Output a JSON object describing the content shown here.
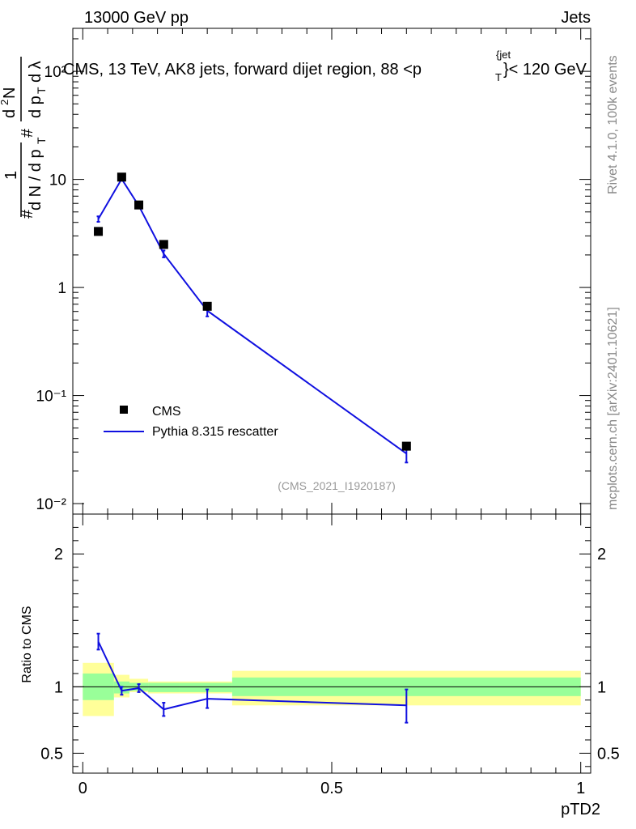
{
  "header": {
    "left": "13000 GeV pp",
    "right": "Jets"
  },
  "side_labels": {
    "rivet": "Rivet 4.1.0,  100k events",
    "mcplots": "mcplots.cern.ch [arXiv:2401.10621]"
  },
  "chart_data": [
    {
      "type": "scatter",
      "panel": "main",
      "title": "CMS, 13 TeV, AK8 jets, forward dijet region, 88 <p",
      "title_sup": "{jet",
      "title_sub": "T",
      "title_tail": "}< 120 GeV",
      "yscale": "log",
      "ylim": [
        0.008,
        250
      ],
      "xlim": [
        -0.02,
        1.02
      ],
      "ylabel": "1 / dN/dpT  d²N / dpT dλ",
      "ytick_labels": [
        "10⁻²",
        "10⁻¹",
        "1",
        "10",
        "10²"
      ],
      "yticks": [
        0.01,
        0.1,
        1,
        10,
        100
      ],
      "watermark": "(CMS_2021_I1920187)",
      "legend": {
        "position": "bottom-left",
        "entries": [
          "CMS",
          "Pythia 8.315 rescatter"
        ]
      },
      "series": [
        {
          "name": "CMS",
          "kind": "markers",
          "color": "#000000",
          "x": [
            0.03125,
            0.078125,
            0.1125,
            0.1625,
            0.25,
            0.65
          ],
          "y": [
            3.3,
            10.5,
            5.8,
            2.5,
            0.67,
            0.034
          ]
        },
        {
          "name": "Pythia 8.315 rescatter",
          "kind": "line",
          "color": "#1010e0",
          "x": [
            0.03125,
            0.078125,
            0.1125,
            0.1625,
            0.25,
            0.65
          ],
          "y": [
            4.3,
            10.1,
            5.7,
            2.05,
            0.61,
            0.029
          ],
          "err_low": [
            0.25,
            0.3,
            0.25,
            0.15,
            0.07,
            0.005
          ],
          "err_high": [
            0.25,
            0.3,
            0.25,
            0.15,
            0.07,
            0.003
          ]
        }
      ]
    },
    {
      "type": "line",
      "panel": "ratio",
      "ylabel": "Ratio to CMS",
      "xlabel": "pTD2",
      "ylim": [
        0.35,
        2.3
      ],
      "xlim": [
        -0.02,
        1.02
      ],
      "yticks": [
        0.5,
        1,
        2
      ],
      "ytick_labels": [
        "0.5",
        "1",
        "2"
      ],
      "xticks": [
        0,
        0.5,
        1
      ],
      "xtick_labels": [
        "0",
        "0.5",
        "1"
      ],
      "uncertainty_bands": {
        "bins": [
          {
            "x0": 0.0,
            "x1": 0.0625,
            "y1_lo": 0.9,
            "y1_hi": 1.1,
            "y2_lo": 0.78,
            "y2_hi": 1.18
          },
          {
            "x0": 0.0625,
            "x1": 0.09375,
            "y1_lo": 0.95,
            "y1_hi": 1.04,
            "y2_lo": 0.92,
            "y2_hi": 1.09
          },
          {
            "x0": 0.09375,
            "x1": 0.13125,
            "y1_lo": 0.97,
            "y1_hi": 1.03,
            "y2_lo": 0.96,
            "y2_hi": 1.06
          },
          {
            "x0": 0.13125,
            "x1": 0.19375,
            "y1_lo": 0.96,
            "y1_hi": 1.03,
            "y2_lo": 0.95,
            "y2_hi": 1.04
          },
          {
            "x0": 0.19375,
            "x1": 0.3,
            "y1_lo": 0.96,
            "y1_hi": 1.03,
            "y2_lo": 0.95,
            "y2_hi": 1.04
          },
          {
            "x0": 0.3,
            "x1": 1.0,
            "y1_lo": 0.93,
            "y1_hi": 1.07,
            "y2_lo": 0.86,
            "y2_hi": 1.12
          }
        ],
        "inner_color": "#99ff99",
        "outer_color": "#ffff99"
      },
      "series": [
        {
          "name": "Pythia 8.315 rescatter / CMS",
          "color": "#1010e0",
          "x": [
            0.03125,
            0.078125,
            0.1125,
            0.1625,
            0.25,
            0.65
          ],
          "y": [
            1.34,
            0.97,
            0.99,
            0.83,
            0.91,
            0.86
          ],
          "err_low": [
            0.06,
            0.03,
            0.03,
            0.05,
            0.07,
            0.13
          ],
          "err_high": [
            0.06,
            0.03,
            0.03,
            0.05,
            0.07,
            0.12
          ]
        }
      ]
    }
  ]
}
